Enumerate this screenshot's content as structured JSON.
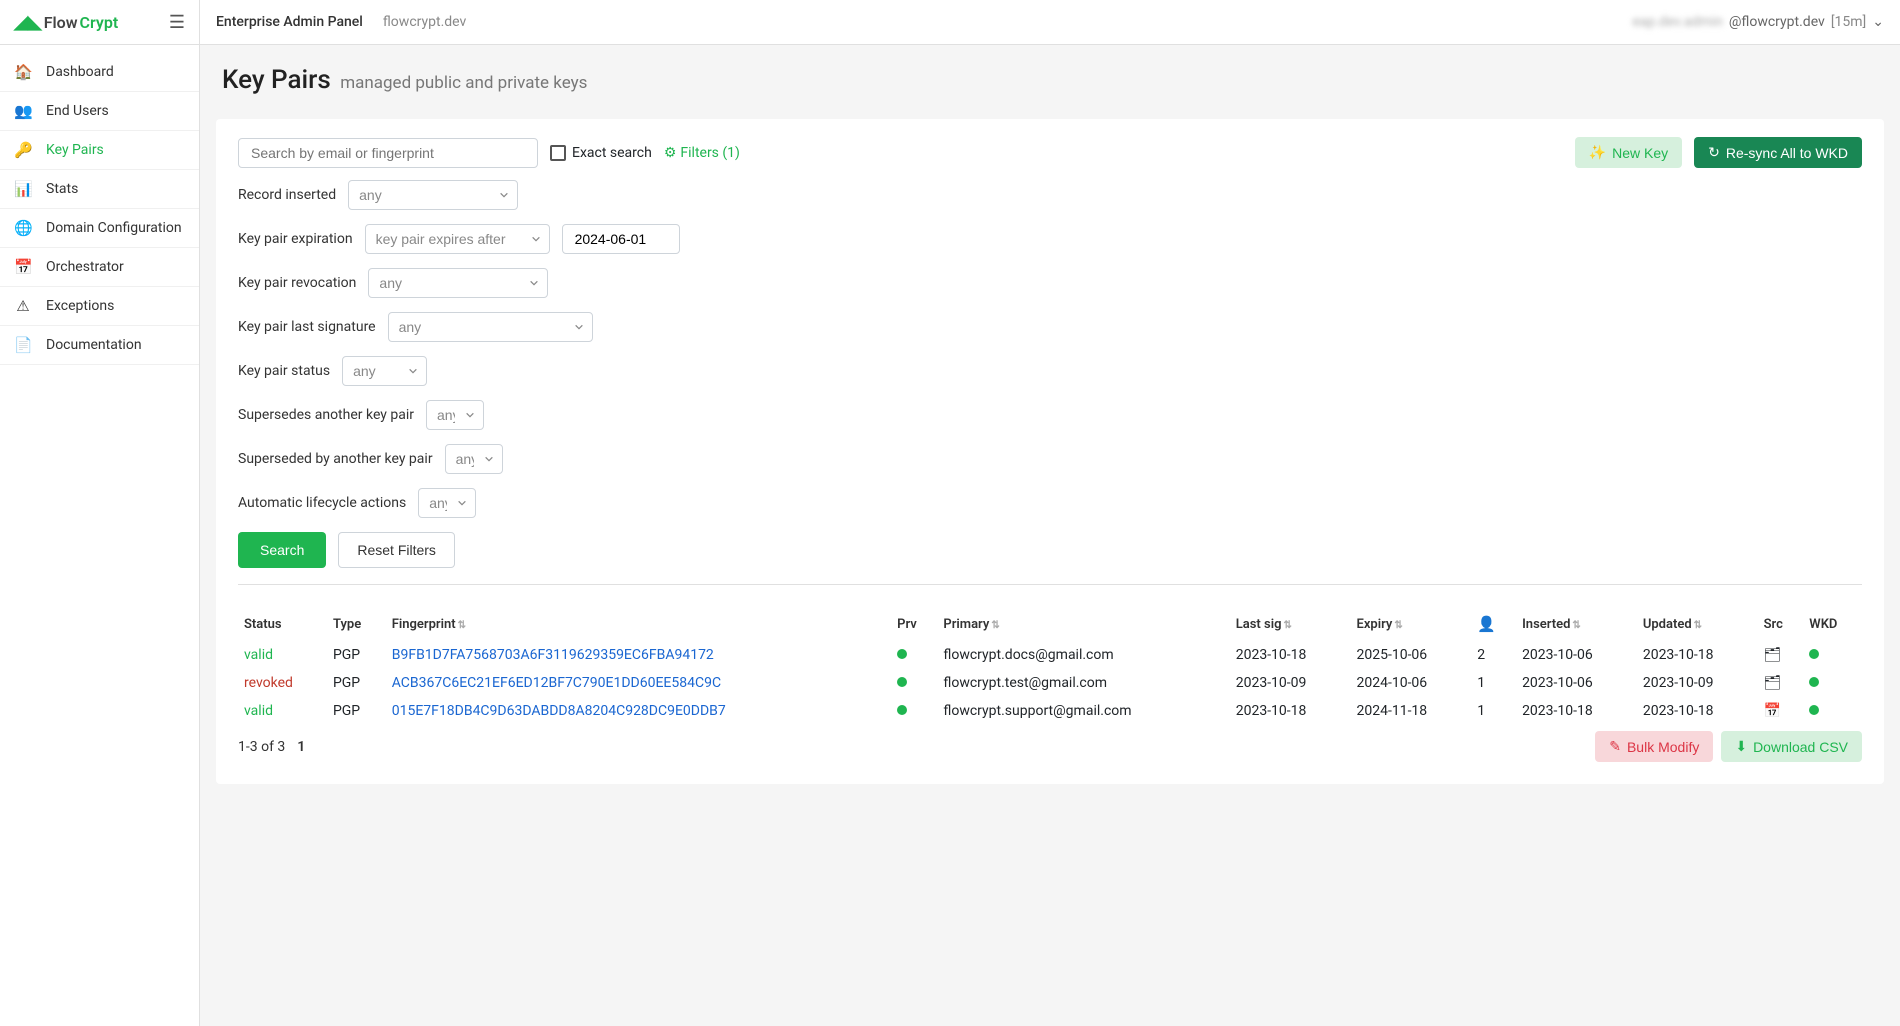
{
  "logo": {
    "flow": "Flow",
    "crypt": "Crypt"
  },
  "nav": {
    "dashboard": "Dashboard",
    "end_users": "End Users",
    "key_pairs": "Key Pairs",
    "stats": "Stats",
    "domain_config": "Domain Configuration",
    "orchestrator": "Orchestrator",
    "exceptions": "Exceptions",
    "documentation": "Documentation"
  },
  "topbar": {
    "title": "Enterprise Admin Panel",
    "domain": "flowcrypt.dev",
    "user_blurred": "eap.dev.admin",
    "user_domain": "@flowcrypt.dev",
    "session": "[15m]"
  },
  "page": {
    "title": "Key Pairs",
    "subtitle": "managed public and private keys"
  },
  "actions": {
    "new_key": "New Key",
    "resync": "Re-sync All to WKD",
    "search": "Search",
    "reset": "Reset Filters",
    "bulk_modify": "Bulk Modify",
    "download_csv": "Download CSV"
  },
  "filters": {
    "search_placeholder": "Search by email or fingerprint",
    "exact_search": "Exact search",
    "filters_link": "Filters (1)",
    "record_inserted": {
      "label": "Record inserted",
      "value": "any"
    },
    "expiration": {
      "label": "Key pair expiration",
      "value": "key pair expires after",
      "date": "2024-06-01"
    },
    "revocation": {
      "label": "Key pair revocation",
      "value": "any"
    },
    "last_signature": {
      "label": "Key pair last signature",
      "value": "any"
    },
    "status": {
      "label": "Key pair status",
      "value": "any"
    },
    "supersedes": {
      "label": "Supersedes another key pair",
      "value": "any"
    },
    "superseded_by": {
      "label": "Superseded by another key pair",
      "value": "any"
    },
    "lifecycle": {
      "label": "Automatic lifecycle actions",
      "value": "any"
    }
  },
  "table": {
    "headers": {
      "status": "Status",
      "type": "Type",
      "fingerprint": "Fingerprint",
      "prv": "Prv",
      "primary": "Primary",
      "last_sig": "Last sig",
      "expiry": "Expiry",
      "users": "",
      "inserted": "Inserted",
      "updated": "Updated",
      "src": "Src",
      "wkd": "WKD"
    },
    "rows": [
      {
        "status": "valid",
        "status_class": "status-valid",
        "type": "PGP",
        "fingerprint": "B9FB1D7FA7568703A6F3119629359EC6FBA94172",
        "primary": "flowcrypt.docs@gmail.com",
        "last_sig": "2023-10-18",
        "expiry": "2025-10-06",
        "users": "2",
        "inserted": "2023-10-06",
        "updated": "2023-10-18",
        "src_icon": "🗂"
      },
      {
        "status": "revoked",
        "status_class": "status-revoked",
        "type": "PGP",
        "fingerprint": "ACB367C6EC21EF6ED12BF7C790E1DD60EE584C9C",
        "primary": "flowcrypt.test@gmail.com",
        "last_sig": "2023-10-09",
        "expiry": "2024-10-06",
        "users": "1",
        "inserted": "2023-10-06",
        "updated": "2023-10-09",
        "src_icon": "🗂"
      },
      {
        "status": "valid",
        "status_class": "status-valid",
        "type": "PGP",
        "fingerprint": "015E7F18DB4C9D63DABDD8A8204C928DC9E0DDB7",
        "primary": "flowcrypt.support@gmail.com",
        "last_sig": "2023-10-18",
        "expiry": "2024-11-18",
        "users": "1",
        "inserted": "2023-10-18",
        "updated": "2023-10-18",
        "src_icon": "📅"
      }
    ],
    "pagination": {
      "range": "1-3 of 3",
      "page": "1"
    }
  }
}
